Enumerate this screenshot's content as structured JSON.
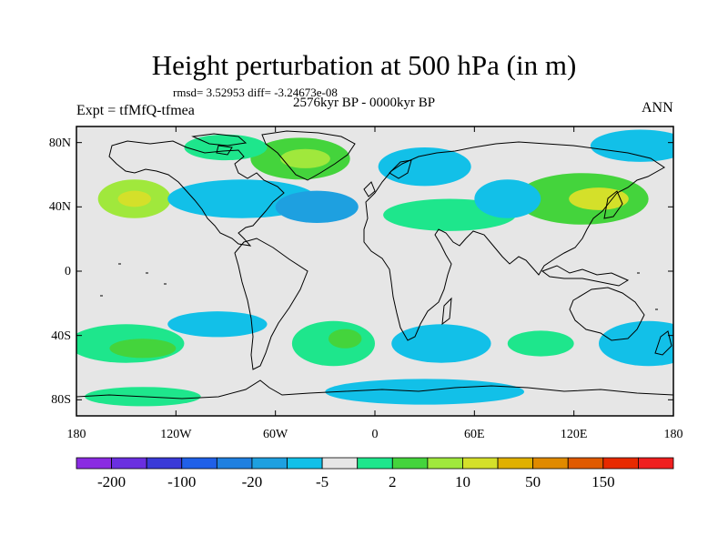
{
  "title": "Height perturbation at 500 hPa (in m)",
  "stats": "rmsd= 3.52953 diff= -3.24673e-08",
  "period": "2576kyr BP - 0000kyr BP",
  "experiment": "Expt = tfMfQ-tfmea",
  "season": "ANN",
  "map": {
    "projection": "cylindrical equidistant",
    "lon_range": [
      -180,
      180
    ],
    "lat_range": [
      -90,
      90
    ],
    "lat_labels": [
      {
        "lat": 80,
        "label": "80N"
      },
      {
        "lat": 40,
        "label": "40N"
      },
      {
        "lat": 0,
        "label": "0"
      },
      {
        "lat": -40,
        "label": "40S"
      },
      {
        "lat": -80,
        "label": "80S"
      }
    ],
    "lon_labels": [
      {
        "lon": -180,
        "label": "180"
      },
      {
        "lon": -120,
        "label": "120W"
      },
      {
        "lon": -60,
        "label": "60W"
      },
      {
        "lon": 0,
        "label": "0"
      },
      {
        "lon": 60,
        "label": "60E"
      },
      {
        "lon": 120,
        "label": "120E"
      },
      {
        "lon": 180,
        "label": "180"
      }
    ],
    "background_color": "#e6e6e6"
  },
  "colorbar": {
    "colors": [
      "#8a2be2",
      "#6a2fe0",
      "#3a3ad8",
      "#2060e8",
      "#2080e0",
      "#1ea0e0",
      "#12c0e8",
      "#e6e6e6",
      "#1ee68c",
      "#44d43c",
      "#a0e83c",
      "#d4e02a",
      "#e0b000",
      "#e08a00",
      "#e05a00",
      "#e82a00",
      "#f02020"
    ],
    "labels": [
      {
        "box": 1,
        "text": "-200"
      },
      {
        "box": 3,
        "text": "-100"
      },
      {
        "box": 5,
        "text": "-20"
      },
      {
        "box": 7,
        "text": "-5"
      },
      {
        "box": 9,
        "text": "2"
      },
      {
        "box": 11,
        "text": "10"
      },
      {
        "box": 13,
        "text": "50"
      },
      {
        "box": 15,
        "text": "150"
      }
    ]
  },
  "anomalies": [
    {
      "name": "north-pacific-positive",
      "lon": -145,
      "lat": 45,
      "rlon": 22,
      "rlat": 12,
      "level": 10
    },
    {
      "name": "north-pacific-core",
      "lon": -145,
      "lat": 45,
      "rlon": 10,
      "rlat": 5,
      "level": 11
    },
    {
      "name": "north-america-negative",
      "lon": -80,
      "lat": 45,
      "rlon": 45,
      "rlat": 12,
      "level": 6
    },
    {
      "name": "north-atlantic-negative",
      "lon": -35,
      "lat": 40,
      "rlon": 25,
      "rlat": 10,
      "level": 5
    },
    {
      "name": "greenland-positive",
      "lon": -45,
      "lat": 70,
      "rlon": 30,
      "rlat": 13,
      "level": 9
    },
    {
      "name": "greenland-core",
      "lon": -42,
      "lat": 70,
      "rlon": 15,
      "rlat": 6,
      "level": 10
    },
    {
      "name": "arctic-canada-positive",
      "lon": -90,
      "lat": 77,
      "rlon": 25,
      "rlat": 8,
      "level": 8
    },
    {
      "name": "eurasia-negative",
      "lon": 30,
      "lat": 65,
      "rlon": 28,
      "rlat": 12,
      "level": 6
    },
    {
      "name": "europe-positive",
      "lon": 45,
      "lat": 35,
      "rlon": 40,
      "rlat": 10,
      "level": 8
    },
    {
      "name": "east-asia-positive",
      "lon": 125,
      "lat": 45,
      "rlon": 40,
      "rlat": 16,
      "level": 9
    },
    {
      "name": "east-asia-core",
      "lon": 135,
      "lat": 45,
      "rlon": 18,
      "rlat": 7,
      "level": 11
    },
    {
      "name": "asia-negative-rim",
      "lon": 80,
      "lat": 45,
      "rlon": 20,
      "rlat": 12,
      "level": 6
    },
    {
      "name": "arctic-pacific-negative",
      "lon": 160,
      "lat": 78,
      "rlon": 30,
      "rlat": 10,
      "level": 6
    },
    {
      "name": "south-pacific-positive",
      "lon": -150,
      "lat": -45,
      "rlon": 35,
      "rlat": 12,
      "level": 8
    },
    {
      "name": "south-pacific-core",
      "lon": -140,
      "lat": -48,
      "rlon": 20,
      "rlat": 6,
      "level": 9
    },
    {
      "name": "south-america-negative",
      "lon": -95,
      "lat": -33,
      "rlon": 30,
      "rlat": 8,
      "level": 6
    },
    {
      "name": "south-atlantic-positive",
      "lon": -25,
      "lat": -45,
      "rlon": 25,
      "rlat": 14,
      "level": 8
    },
    {
      "name": "south-atlantic-core",
      "lon": -18,
      "lat": -42,
      "rlon": 10,
      "rlat": 6,
      "level": 9
    },
    {
      "name": "southern-ocean-negative",
      "lon": 40,
      "lat": -45,
      "rlon": 30,
      "rlat": 12,
      "level": 6
    },
    {
      "name": "indian-ocean-positive",
      "lon": 100,
      "lat": -45,
      "rlon": 20,
      "rlat": 8,
      "level": 8
    },
    {
      "name": "australia-south-negative",
      "lon": 165,
      "lat": -45,
      "rlon": 30,
      "rlat": 14,
      "level": 6
    },
    {
      "name": "antarctic-negative",
      "lon": 30,
      "lat": -75,
      "rlon": 60,
      "rlat": 8,
      "level": 6
    },
    {
      "name": "antarctic-pacific-positive",
      "lon": -140,
      "lat": -78,
      "rlon": 35,
      "rlat": 6,
      "level": 8
    }
  ]
}
